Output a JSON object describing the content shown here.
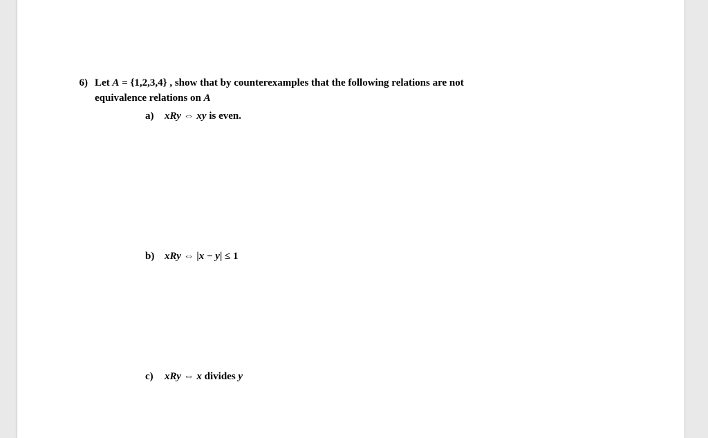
{
  "colors": {
    "page_bg": "#ffffff",
    "viewport_bg": "#e9e9e9",
    "text": "#000000",
    "page_border": "#cfcfcf"
  },
  "typography": {
    "font_family": "Times New Roman",
    "base_size_pt": 11,
    "weight": "bold"
  },
  "question": {
    "number": "6)",
    "line1_pre": "Let  ",
    "A": "A",
    "eq": " = ",
    "set": "{1,2,3,4}",
    "line1_post": " , show that by counterexamples that the following relations are not",
    "line2": "equivalence relations on ",
    "A2": "A"
  },
  "parts": {
    "a": {
      "label": "a)",
      "lhs": "xRy",
      "iff": " ⇔ ",
      "rhs_pre": "xy",
      "rhs_post": " is even."
    },
    "b": {
      "label": "b)",
      "lhs": "xRy",
      "iff": " ⇔ ",
      "abs_open": "|",
      "x": "x",
      "minus": " − ",
      "y": "y",
      "abs_close": "|",
      "le": " ≤ 1"
    },
    "c": {
      "label": "c)",
      "lhs": "xRy",
      "iff": " ⇔ ",
      "x": "x",
      "mid": " divides  ",
      "y": "y"
    }
  }
}
